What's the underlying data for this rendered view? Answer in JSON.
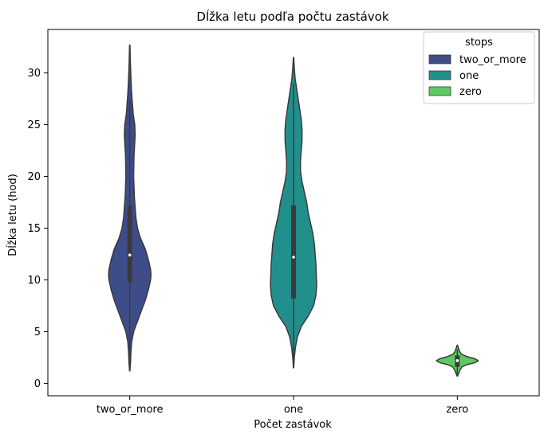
{
  "chart_data": {
    "type": "violin",
    "title": "Dĺžka letu podľa počtu zastávok",
    "xlabel": "Počet zastávok",
    "ylabel": "Dĺžka letu (hod)",
    "categories": [
      "two_or_more",
      "one",
      "zero"
    ],
    "ylim": [
      -1.2,
      34.2
    ],
    "yticks": [
      0,
      5,
      10,
      15,
      20,
      25,
      30
    ],
    "legend": {
      "title": "stops",
      "position": "top-right",
      "entries": [
        "two_or_more",
        "one",
        "zero"
      ]
    },
    "colors": {
      "two_or_more": "#3e4c8a",
      "one": "#21908d",
      "zero": "#5ec962",
      "outline": "#3a3a3a",
      "box": "#3a3a3a"
    },
    "series": [
      {
        "name": "two_or_more",
        "min": 1.2,
        "q1": 9.8,
        "median": 12.4,
        "q3": 17.2,
        "whisker_high": 27.5,
        "max": 32.7,
        "profile": [
          [
            1.2,
            0.2
          ],
          [
            2,
            1
          ],
          [
            3,
            1.5
          ],
          [
            4,
            2.5
          ],
          [
            5,
            5
          ],
          [
            6,
            10
          ],
          [
            7,
            15
          ],
          [
            8,
            20
          ],
          [
            9,
            24
          ],
          [
            10,
            27
          ],
          [
            10.5,
            27.5
          ],
          [
            11,
            27
          ],
          [
            12,
            24
          ],
          [
            13,
            20
          ],
          [
            14,
            14
          ],
          [
            15,
            10
          ],
          [
            16,
            8
          ],
          [
            17,
            7
          ],
          [
            18,
            6
          ],
          [
            20,
            5
          ],
          [
            22,
            5.5
          ],
          [
            24,
            7
          ],
          [
            25,
            6.5
          ],
          [
            26,
            4.5
          ],
          [
            27,
            3.5
          ],
          [
            28,
            2.5
          ],
          [
            29,
            1.8
          ],
          [
            30,
            1.3
          ],
          [
            31,
            0.8
          ],
          [
            32,
            0.5
          ],
          [
            32.7,
            0.2
          ]
        ]
      },
      {
        "name": "one",
        "min": 1.5,
        "q1": 8.2,
        "median": 12.2,
        "q3": 17.2,
        "whisker_high": 29.0,
        "max": 31.5,
        "profile": [
          [
            1.5,
            0.2
          ],
          [
            2.5,
            1
          ],
          [
            3.5,
            2.5
          ],
          [
            4.5,
            5
          ],
          [
            5.5,
            10
          ],
          [
            6.5,
            19
          ],
          [
            7.5,
            26
          ],
          [
            8.5,
            29
          ],
          [
            9.5,
            30
          ],
          [
            10.5,
            29.5
          ],
          [
            11.5,
            29
          ],
          [
            12.5,
            28
          ],
          [
            13.5,
            27
          ],
          [
            14.5,
            25
          ],
          [
            15.5,
            22
          ],
          [
            16.5,
            19
          ],
          [
            17.5,
            17
          ],
          [
            18.5,
            14
          ],
          [
            19.5,
            11
          ],
          [
            20.5,
            9
          ],
          [
            21.5,
            9
          ],
          [
            22.5,
            10
          ],
          [
            23.5,
            11
          ],
          [
            24.5,
            11
          ],
          [
            25.5,
            10
          ],
          [
            26.5,
            8
          ],
          [
            27.5,
            6
          ],
          [
            28.5,
            4
          ],
          [
            29.5,
            2
          ],
          [
            30.5,
            1
          ],
          [
            31.5,
            0.2
          ]
        ]
      },
      {
        "name": "zero",
        "min": 0.7,
        "q1": 1.6,
        "median": 2.2,
        "q3": 2.7,
        "whisker_high": 3.3,
        "max": 3.7,
        "profile": [
          [
            0.7,
            0.2
          ],
          [
            1.0,
            2
          ],
          [
            1.3,
            3.5
          ],
          [
            1.6,
            6
          ],
          [
            1.8,
            12
          ],
          [
            2.0,
            23
          ],
          [
            2.2,
            27
          ],
          [
            2.4,
            22
          ],
          [
            2.6,
            12
          ],
          [
            2.8,
            6
          ],
          [
            3.0,
            3.5
          ],
          [
            3.3,
            2
          ],
          [
            3.5,
            1
          ],
          [
            3.7,
            0.2
          ]
        ]
      }
    ]
  }
}
